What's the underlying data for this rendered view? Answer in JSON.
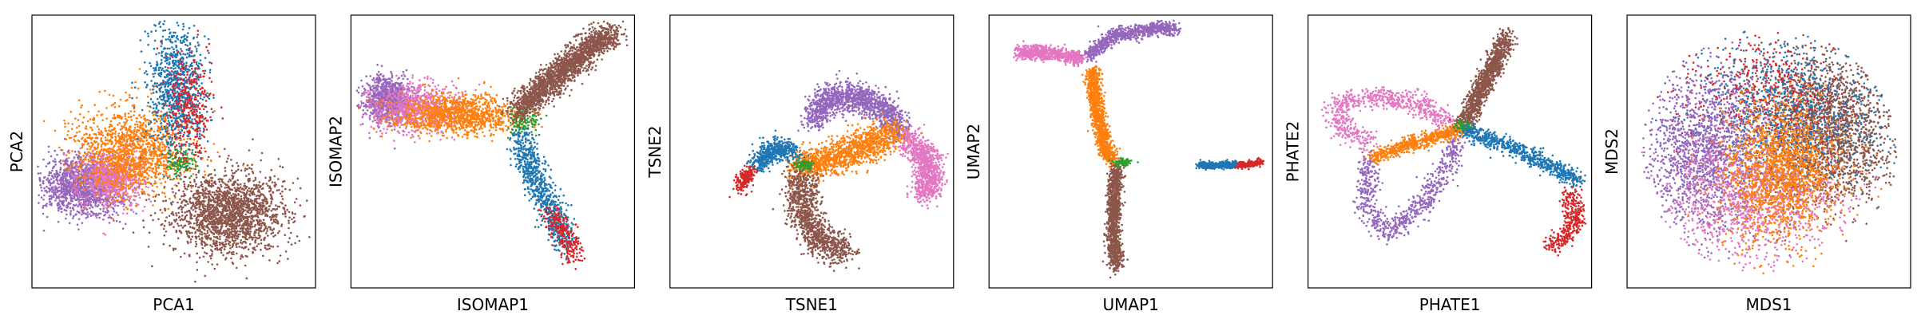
{
  "chart_data": [
    {
      "type": "scatter",
      "xlabel": "PCA1",
      "ylabel": "PCA2",
      "xlim": [
        -1,
        1
      ],
      "ylim": [
        -1,
        1
      ],
      "grid": false,
      "clusters": [
        {
          "color": "#9467bd",
          "n": 1400,
          "cx": -0.64,
          "cy": -0.25,
          "sx": 0.14,
          "sy": 0.11
        },
        {
          "color": "#e377c2",
          "n": 700,
          "cx": -0.45,
          "cy": -0.2,
          "sx": 0.12,
          "sy": 0.1
        },
        {
          "color": "#ff7f0e",
          "n": 1400,
          "cx": -0.3,
          "cy": 0.0,
          "sx": 0.2,
          "sy": 0.16
        },
        {
          "color": "#2ca02c",
          "n": 120,
          "cx": 0.05,
          "cy": -0.08,
          "sx": 0.05,
          "sy": 0.05
        },
        {
          "color": "#1f77b4",
          "n": 900,
          "cx": 0.02,
          "cy": 0.48,
          "sx": 0.1,
          "sy": 0.24
        },
        {
          "color": "#d62728",
          "n": 350,
          "cx": 0.1,
          "cy": 0.32,
          "sx": 0.08,
          "sy": 0.2
        },
        {
          "color": "#8c564b",
          "n": 1900,
          "cx": 0.38,
          "cy": -0.45,
          "sx": 0.2,
          "sy": 0.15
        }
      ]
    },
    {
      "type": "scatter",
      "xlabel": "ISOMAP1",
      "ylabel": "ISOMAP2",
      "xlim": [
        -1,
        1
      ],
      "ylim": [
        -1,
        1
      ],
      "grid": false,
      "clusters": [
        {
          "color": "#9467bd",
          "n": 900,
          "cx": -0.74,
          "cy": 0.38,
          "sx": 0.08,
          "sy": 0.08
        },
        {
          "color": "#e377c2",
          "n": 800,
          "cx": -0.55,
          "cy": 0.32,
          "sx": 0.16,
          "sy": 0.09
        },
        {
          "color": "#ff7f0e",
          "n": 1100,
          "cx": -0.25,
          "cy": 0.27,
          "sx": 0.22,
          "sy": 0.07
        },
        {
          "color": "#2ca02c",
          "n": 120,
          "cx": 0.22,
          "cy": 0.22,
          "sx": 0.05,
          "sy": 0.05
        },
        {
          "color": "#8c564b",
          "n": 1900,
          "path": [
            [
              0.18,
              0.3
            ],
            [
              0.45,
              0.55
            ],
            [
              0.72,
              0.8
            ],
            [
              0.85,
              0.86
            ]
          ],
          "spread": 0.05
        },
        {
          "color": "#1f77b4",
          "n": 800,
          "path": [
            [
              0.2,
              0.12
            ],
            [
              0.3,
              -0.2
            ],
            [
              0.45,
              -0.5
            ],
            [
              0.5,
              -0.68
            ]
          ],
          "spread": 0.05
        },
        {
          "color": "#d62728",
          "n": 250,
          "path": [
            [
              0.4,
              -0.45
            ],
            [
              0.52,
              -0.62
            ],
            [
              0.6,
              -0.8
            ]
          ],
          "spread": 0.04
        }
      ]
    },
    {
      "type": "scatter",
      "xlabel": "TSNE1",
      "ylabel": "TSNE2",
      "xlim": [
        -1,
        1
      ],
      "ylim": [
        -1,
        1
      ],
      "grid": false,
      "clusters": [
        {
          "color": "#9467bd",
          "n": 1300,
          "path": [
            [
              0.02,
              0.22
            ],
            [
              0.1,
              0.38
            ],
            [
              0.3,
              0.42
            ],
            [
              0.52,
              0.3
            ],
            [
              0.62,
              0.15
            ]
          ],
          "spread": 0.05
        },
        {
          "color": "#e377c2",
          "n": 900,
          "path": [
            [
              0.68,
              0.1
            ],
            [
              0.8,
              -0.05
            ],
            [
              0.85,
              -0.2
            ],
            [
              0.78,
              -0.32
            ]
          ],
          "spread": 0.05
        },
        {
          "color": "#ff7f0e",
          "n": 1300,
          "path": [
            [
              -0.1,
              -0.12
            ],
            [
              0.15,
              -0.05
            ],
            [
              0.4,
              0.05
            ],
            [
              0.58,
              0.15
            ]
          ],
          "spread": 0.06
        },
        {
          "color": "#8c564b",
          "n": 1100,
          "path": [
            [
              -0.08,
              -0.18
            ],
            [
              -0.05,
              -0.45
            ],
            [
              0.05,
              -0.65
            ],
            [
              0.25,
              -0.73
            ]
          ],
          "spread": 0.06
        },
        {
          "color": "#1f77b4",
          "n": 500,
          "path": [
            [
              -0.38,
              -0.1
            ],
            [
              -0.28,
              0.02
            ],
            [
              -0.12,
              0.0
            ]
          ],
          "spread": 0.04
        },
        {
          "color": "#d62728",
          "n": 180,
          "path": [
            [
              -0.5,
              -0.28
            ],
            [
              -0.47,
              -0.18
            ],
            [
              -0.42,
              -0.14
            ]
          ],
          "spread": 0.025
        },
        {
          "color": "#2ca02c",
          "n": 80,
          "cx": -0.05,
          "cy": -0.1,
          "sx": 0.03,
          "sy": 0.02
        }
      ]
    },
    {
      "type": "scatter",
      "xlabel": "UMAP1",
      "ylabel": "UMAP2",
      "xlim": [
        -1,
        1
      ],
      "ylim": [
        -1,
        1
      ],
      "grid": false,
      "clusters": [
        {
          "color": "#e377c2",
          "n": 700,
          "path": [
            [
              -0.8,
              0.73
            ],
            [
              -0.55,
              0.72
            ],
            [
              -0.35,
              0.68
            ]
          ],
          "spread": 0.025
        },
        {
          "color": "#9467bd",
          "n": 800,
          "path": [
            [
              -0.3,
              0.7
            ],
            [
              -0.12,
              0.85
            ],
            [
              0.15,
              0.9
            ],
            [
              0.32,
              0.9
            ]
          ],
          "spread": 0.025
        },
        {
          "color": "#ff7f0e",
          "n": 1100,
          "path": [
            [
              -0.27,
              0.6
            ],
            [
              -0.24,
              0.3
            ],
            [
              -0.18,
              0.02
            ],
            [
              -0.13,
              -0.08
            ]
          ],
          "spread": 0.025
        },
        {
          "color": "#8c564b",
          "n": 1100,
          "path": [
            [
              -0.1,
              -0.12
            ],
            [
              -0.12,
              -0.4
            ],
            [
              -0.12,
              -0.65
            ],
            [
              -0.1,
              -0.85
            ]
          ],
          "spread": 0.025
        },
        {
          "color": "#2ca02c",
          "n": 80,
          "cx": -0.05,
          "cy": -0.08,
          "sx": 0.03,
          "sy": 0.015
        },
        {
          "color": "#1f77b4",
          "n": 500,
          "path": [
            [
              0.48,
              -0.1
            ],
            [
              0.62,
              -0.1
            ],
            [
              0.75,
              -0.1
            ]
          ],
          "spread": 0.012
        },
        {
          "color": "#d62728",
          "n": 200,
          "path": [
            [
              0.76,
              -0.1
            ],
            [
              0.86,
              -0.09
            ],
            [
              0.92,
              -0.08
            ]
          ],
          "spread": 0.012
        }
      ]
    },
    {
      "type": "scatter",
      "xlabel": "PHATE1",
      "ylabel": "PHATE2",
      "xlim": [
        -1,
        1
      ],
      "ylim": [
        -1,
        1
      ],
      "grid": false,
      "clusters": [
        {
          "color": "#e377c2",
          "n": 700,
          "path": [
            [
              -0.55,
              0.05
            ],
            [
              -0.8,
              0.2
            ],
            [
              -0.8,
              0.35
            ],
            [
              -0.5,
              0.4
            ],
            [
              -0.2,
              0.35
            ],
            [
              0.0,
              0.2
            ]
          ],
          "spread": 0.04
        },
        {
          "color": "#9467bd",
          "n": 700,
          "path": [
            [
              -0.55,
              -0.02
            ],
            [
              -0.6,
              -0.4
            ],
            [
              -0.45,
              -0.6
            ],
            [
              -0.2,
              -0.4
            ],
            [
              0.0,
              -0.1
            ],
            [
              0.05,
              0.1
            ]
          ],
          "spread": 0.04
        },
        {
          "color": "#ff7f0e",
          "n": 600,
          "path": [
            [
              -0.55,
              -0.05
            ],
            [
              -0.3,
              0.05
            ],
            [
              -0.05,
              0.12
            ],
            [
              0.1,
              0.17
            ]
          ],
          "spread": 0.025
        },
        {
          "color": "#8c564b",
          "n": 1100,
          "path": [
            [
              0.1,
              0.2
            ],
            [
              0.22,
              0.45
            ],
            [
              0.35,
              0.72
            ],
            [
              0.4,
              0.85
            ]
          ],
          "spread": 0.035
        },
        {
          "color": "#2ca02c",
          "n": 80,
          "cx": 0.1,
          "cy": 0.18,
          "sx": 0.03,
          "sy": 0.025
        },
        {
          "color": "#1f77b4",
          "n": 700,
          "path": [
            [
              0.12,
              0.15
            ],
            [
              0.4,
              0.05
            ],
            [
              0.6,
              -0.05
            ],
            [
              0.8,
              -0.15
            ],
            [
              0.9,
              -0.22
            ]
          ],
          "spread": 0.03
        },
        {
          "color": "#d62728",
          "n": 350,
          "path": [
            [
              0.85,
              -0.3
            ],
            [
              0.9,
              -0.5
            ],
            [
              0.8,
              -0.65
            ],
            [
              0.7,
              -0.7
            ]
          ],
          "spread": 0.035
        }
      ]
    },
    {
      "type": "scatter",
      "xlabel": "MDS1",
      "ylabel": "MDS2",
      "xlim": [
        -1,
        1
      ],
      "ylim": [
        -1,
        1
      ],
      "grid": false,
      "clusters": [
        {
          "color": "#8c564b",
          "n": 2200,
          "cx": 0.4,
          "cy": 0.15,
          "sx": 0.25,
          "sy": 0.28,
          "r": 0.9
        },
        {
          "color": "#1f77b4",
          "n": 900,
          "cx": 0.15,
          "cy": 0.3,
          "sx": 0.35,
          "sy": 0.28,
          "r": 0.9
        },
        {
          "color": "#d62728",
          "n": 400,
          "cx": -0.05,
          "cy": 0.45,
          "sx": 0.3,
          "sy": 0.2,
          "r": 0.9
        },
        {
          "color": "#9467bd",
          "n": 1600,
          "cx": -0.45,
          "cy": 0.0,
          "sx": 0.22,
          "sy": 0.3,
          "r": 0.9
        },
        {
          "color": "#e377c2",
          "n": 1100,
          "cx": -0.1,
          "cy": -0.35,
          "sx": 0.3,
          "sy": 0.22,
          "r": 0.9
        },
        {
          "color": "#ff7f0e",
          "n": 1600,
          "cx": 0.1,
          "cy": -0.15,
          "sx": 0.2,
          "sy": 0.26,
          "r": 0.9
        }
      ]
    }
  ]
}
